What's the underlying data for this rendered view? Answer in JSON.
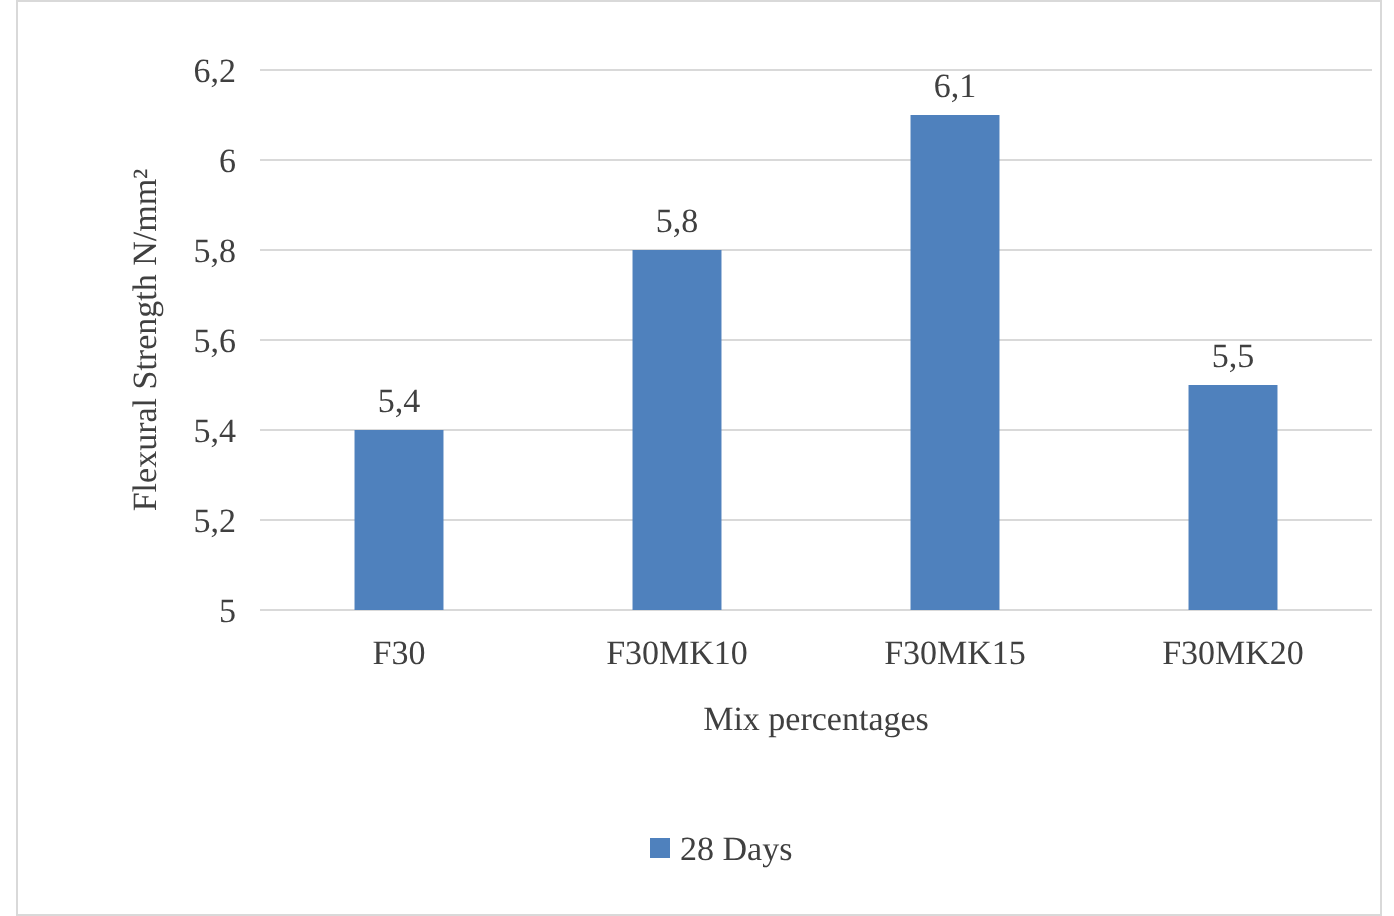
{
  "chart_data": {
    "type": "bar",
    "xlabel": "Mix percentages",
    "ylabel": "Flexural Strength N/mm²",
    "categories": [
      "F30",
      "F30MK10",
      "F30MK15",
      "F30MK20"
    ],
    "series": [
      {
        "name": "28 Days",
        "color": "#4f81bd",
        "values": [
          5.4,
          5.8,
          6.1,
          5.5
        ],
        "value_labels": [
          "5,4",
          "5,8",
          "6,1",
          "5,5"
        ]
      }
    ],
    "ylim": [
      5,
      6.2
    ],
    "yticks": [
      {
        "value": 5,
        "label": "5"
      },
      {
        "value": 5.2,
        "label": "5,2"
      },
      {
        "value": 5.4,
        "label": "5,4"
      },
      {
        "value": 5.6,
        "label": "5,6"
      },
      {
        "value": 5.8,
        "label": "5,8"
      },
      {
        "value": 6,
        "label": "6"
      },
      {
        "value": 6.2,
        "label": "6,2"
      }
    ],
    "grid": "y",
    "legend": "bottom"
  }
}
